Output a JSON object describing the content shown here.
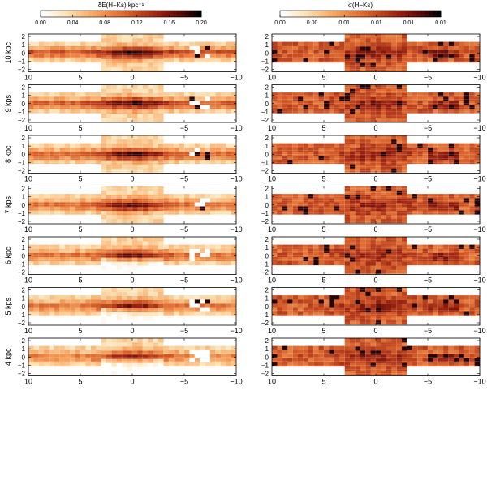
{
  "chart_data": {
    "type": "heatmap",
    "columns": [
      {
        "colorbar": {
          "title": "δE(H−Ks) kpc⁻¹",
          "ticks": [
            "0.00",
            "0.04",
            "0.08",
            "0.12",
            "0.16",
            "0.20"
          ],
          "range": [
            0.0,
            0.2
          ],
          "colormap": "white-orange-dark-red-black"
        },
        "field": "mean",
        "bright_patch_near_l": -6
      },
      {
        "colorbar": {
          "title": "σ(H−Ks)",
          "ticks": [
            "0.00",
            "0.00",
            "0.01",
            "0.01",
            "0.01",
            "0.01"
          ],
          "colormap": "white-orange-dark-red-black"
        },
        "field": "sigma"
      }
    ],
    "rows": [
      {
        "label": "10 kpc",
        "seed": 10
      },
      {
        "label": "9 kps",
        "seed": 9
      },
      {
        "label": "8 kpc",
        "seed": 8
      },
      {
        "label": "7 kps",
        "seed": 7
      },
      {
        "label": "6 kpc",
        "seed": 6
      },
      {
        "label": "5 kps",
        "seed": 5
      },
      {
        "label": "4 kpc",
        "seed": 4
      }
    ],
    "x_axis": {
      "range": [
        10,
        -10
      ],
      "ticks": [
        "10",
        "5",
        "0",
        "−5",
        "−10"
      ],
      "values": [
        10,
        5,
        0,
        -5,
        -10
      ]
    },
    "y_axis": {
      "range": [
        -2.3,
        2.3
      ],
      "ticks": [
        "−2",
        "−1",
        "0",
        "1",
        "2"
      ],
      "values": [
        -2,
        -1,
        0,
        1,
        2
      ]
    },
    "grid": true
  }
}
